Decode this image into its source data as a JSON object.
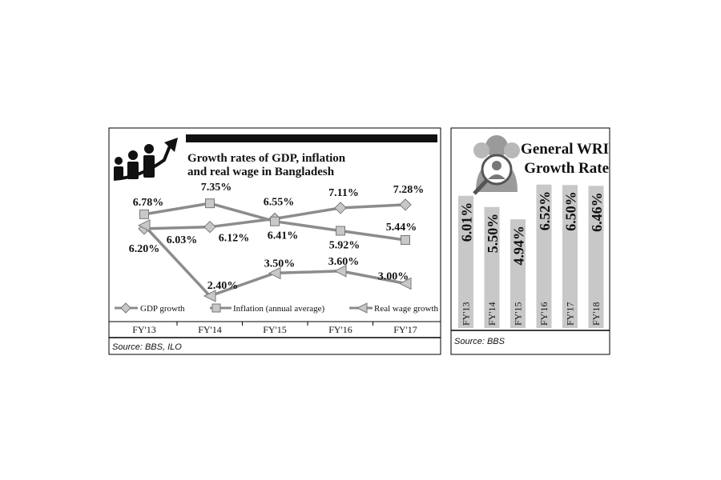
{
  "chart_data": [
    {
      "type": "line",
      "title": "Growth rates of GDP, inflation and real wage in Bangladesh",
      "title_lines": [
        "Growth rates of GDP, inflation",
        "and real wage in Bangladesh"
      ],
      "categories": [
        "FY'13",
        "FY'14",
        "FY'15",
        "FY'16",
        "FY'17"
      ],
      "series": [
        {
          "name": "GDP growth",
          "marker": "diamond",
          "values": [
            6.03,
            6.12,
            6.55,
            7.11,
            7.28
          ],
          "labels": [
            "6.03%",
            "6.12%",
            "6.55%",
            "7.11%",
            "7.28%"
          ]
        },
        {
          "name": "Inflation (annual average)",
          "marker": "square",
          "values": [
            6.78,
            7.35,
            6.41,
            5.92,
            5.44
          ],
          "labels": [
            "6.78%",
            "7.35%",
            "6.41%",
            "5.92%",
            "5.44%"
          ]
        },
        {
          "name": "Real wage growth",
          "marker": "triangle",
          "values": [
            6.2,
            2.4,
            3.5,
            3.6,
            3.0
          ],
          "labels": [
            "6.20%",
            "2.40%",
            "3.50%",
            "3.60%",
            "3.00%"
          ]
        }
      ],
      "source": "Source: BBS, ILO",
      "legend_position": "bottom",
      "grid": false
    },
    {
      "type": "bar",
      "title": "General WRI Growth Rate",
      "title_lines": [
        "General WRI",
        "Growth Rate"
      ],
      "categories": [
        "FY'13",
        "FY'14",
        "FY'15",
        "FY'16",
        "FY'17",
        "FY'18"
      ],
      "values": [
        6.01,
        5.5,
        4.94,
        6.52,
        6.5,
        6.46
      ],
      "labels": [
        "6.01%",
        "5.50%",
        "4.94%",
        "6.52%",
        "6.50%",
        "6.46%"
      ],
      "source": "Source: BBS"
    }
  ],
  "colors": {
    "series_line": "#8c8c8c",
    "bar": "#c8c8c8",
    "frame": "#000000",
    "text": "#111111"
  }
}
